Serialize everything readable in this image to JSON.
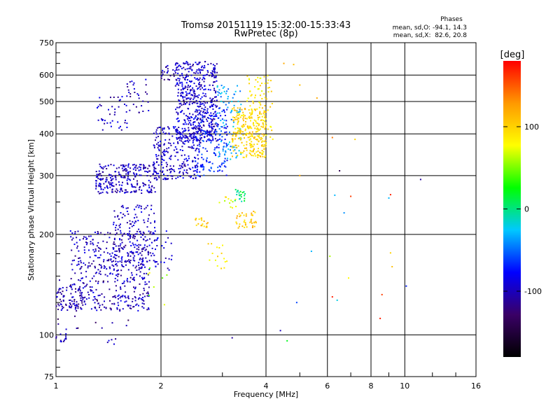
{
  "chart_data": {
    "type": "scatter",
    "title": "Tromsø 20151119 15:32:00-15:33:43",
    "subtitle": "RwPretec (8p)",
    "xlabel": "Frequency [MHz]",
    "ylabel": "Stationary phase Virtual Height [km]",
    "x_scale": "log",
    "y_scale": "log",
    "xlim": [
      1,
      16
    ],
    "ylim": [
      75,
      750
    ],
    "x_ticks": [
      1,
      2,
      4,
      6,
      8,
      10,
      16
    ],
    "x_tick_labels": [
      "1",
      "2",
      "4",
      "6",
      "8",
      "10",
      "16"
    ],
    "y_ticks": [
      75,
      100,
      200,
      300,
      400,
      500,
      600,
      750
    ],
    "y_tick_labels": [
      "75",
      "100",
      "200",
      "300",
      "400",
      "500",
      "600",
      "750"
    ],
    "grid": true,
    "stats": {
      "heading": "Phases",
      "o_line": "mean, sd,O: -94.1, 14.3",
      "x_line": "mean, sd,X:  82.6, 20.8"
    },
    "colorbar": {
      "label": "[deg]",
      "range": [
        -180,
        180
      ],
      "ticks": [
        -100,
        0,
        100
      ],
      "tick_labels": [
        "-100",
        "0",
        "100"
      ],
      "colors": [
        "#000000",
        "#3a0066",
        "#0000ff",
        "#00c8ff",
        "#00ff00",
        "#ffff00",
        "#ff9900",
        "#ff0000"
      ]
    },
    "series": [
      {
        "clusters": [
          {
            "f": [
              1.0,
              1.08
            ],
            "h": [
              95,
              104
            ],
            "phase": -100,
            "n": 14
          },
          {
            "f": [
              1.0,
              1.22
            ],
            "h": [
              118,
              140
            ],
            "phase": -105,
            "n": 70
          },
          {
            "f": [
              1.1,
              1.85
            ],
            "h": [
              118,
              205
            ],
            "phase": -100,
            "n": 420
          },
          {
            "f": [
              1.45,
              1.95
            ],
            "h": [
              160,
              245
            ],
            "phase": -98,
            "n": 160
          },
          {
            "f": [
              1.6,
              2.15
            ],
            "h": [
              155,
              210
            ],
            "phase": -95,
            "n": 50
          },
          {
            "f": [
              1.3,
              1.95
            ],
            "h": [
              265,
              325
            ],
            "phase": -100,
            "n": 260
          },
          {
            "f": [
              1.9,
              2.6
            ],
            "h": [
              292,
              420
            ],
            "phase": -95,
            "n": 260
          },
          {
            "f": [
              1.3,
              1.6
            ],
            "h": [
              410,
              520
            ],
            "phase": -100,
            "n": 40
          },
          {
            "f": [
              1.58,
              1.85
            ],
            "h": [
              460,
              600
            ],
            "phase": -100,
            "n": 30
          },
          {
            "f": [
              2.0,
              2.2
            ],
            "h": [
              580,
              640
            ],
            "phase": -105,
            "n": 22
          },
          {
            "f": [
              2.2,
              2.9
            ],
            "h": [
              380,
              660
            ],
            "phase": -95,
            "n": 520
          },
          {
            "f": [
              2.5,
              3.1
            ],
            "h": [
              300,
              480
            ],
            "phase": -70,
            "n": 160
          },
          {
            "f": [
              2.9,
              3.4
            ],
            "h": [
              330,
              560
            ],
            "phase": -35,
            "n": 90
          },
          {
            "f": [
              3.2,
              4.0
            ],
            "h": [
              340,
              480
            ],
            "phase": 100,
            "n": 260
          },
          {
            "f": [
              3.5,
              4.2
            ],
            "h": [
              380,
              600
            ],
            "phase": 90,
            "n": 90
          },
          {
            "f": [
              3.25,
              3.55
            ],
            "h": [
              250,
              275
            ],
            "phase": 5,
            "n": 22
          },
          {
            "f": [
              2.9,
              3.3
            ],
            "h": [
              240,
              260
            ],
            "phase": 80,
            "n": 12
          },
          {
            "f": [
              3.25,
              3.75
            ],
            "h": [
              208,
              235
            ],
            "phase": 105,
            "n": 40
          },
          {
            "f": [
              2.5,
              2.75
            ],
            "h": [
              210,
              225
            ],
            "phase": 100,
            "n": 20
          },
          {
            "f": [
              2.7,
              3.1
            ],
            "h": [
              155,
              195
            ],
            "phase": 90,
            "n": 16
          },
          {
            "f": [
              1.8,
              2.1
            ],
            "h": [
              120,
              160
            ],
            "phase": 60,
            "n": 8
          },
          {
            "f": [
              1.4,
              1.5
            ],
            "h": [
              92,
              98
            ],
            "phase": -100,
            "n": 5
          },
          {
            "f": [
              1.0,
              1.8
            ],
            "h": [
              104,
              150
            ],
            "phase": -120,
            "n": 26
          }
        ],
        "points": [
          {
            "f": 4.6,
            "h": 96,
            "phase": 20
          },
          {
            "f": 4.8,
            "h": 645,
            "phase": 110
          },
          {
            "f": 5.6,
            "h": 512,
            "phase": 120
          },
          {
            "f": 6.2,
            "h": 390,
            "phase": 140
          },
          {
            "f": 6.5,
            "h": 310,
            "phase": -140
          },
          {
            "f": 6.3,
            "h": 262,
            "phase": -30
          },
          {
            "f": 6.7,
            "h": 232,
            "phase": -40
          },
          {
            "f": 7.0,
            "h": 260,
            "phase": 160
          },
          {
            "f": 6.1,
            "h": 172,
            "phase": 60
          },
          {
            "f": 6.2,
            "h": 130,
            "phase": 170
          },
          {
            "f": 6.9,
            "h": 148,
            "phase": 80
          },
          {
            "f": 8.5,
            "h": 112,
            "phase": 170
          },
          {
            "f": 8.6,
            "h": 132,
            "phase": 160
          },
          {
            "f": 9.0,
            "h": 257,
            "phase": -30
          },
          {
            "f": 9.1,
            "h": 263,
            "phase": 170
          },
          {
            "f": 9.1,
            "h": 176,
            "phase": 100
          },
          {
            "f": 9.2,
            "h": 160,
            "phase": 110
          },
          {
            "f": 10.1,
            "h": 140,
            "phase": -70
          },
          {
            "f": 11.1,
            "h": 292,
            "phase": -110
          },
          {
            "f": 4.0,
            "h": 465,
            "phase": 110
          },
          {
            "f": 4.9,
            "h": 125,
            "phase": -60
          },
          {
            "f": 4.4,
            "h": 103,
            "phase": -100
          },
          {
            "f": 5.4,
            "h": 178,
            "phase": -30
          },
          {
            "f": 5.0,
            "h": 300,
            "phase": 120
          },
          {
            "f": 7.2,
            "h": 385,
            "phase": 100
          },
          {
            "f": 6.4,
            "h": 127,
            "phase": -20
          },
          {
            "f": 3.2,
            "h": 98,
            "phase": -110
          },
          {
            "f": 5.0,
            "h": 560,
            "phase": 110
          },
          {
            "f": 4.5,
            "h": 650,
            "phase": 120
          }
        ]
      }
    ]
  }
}
